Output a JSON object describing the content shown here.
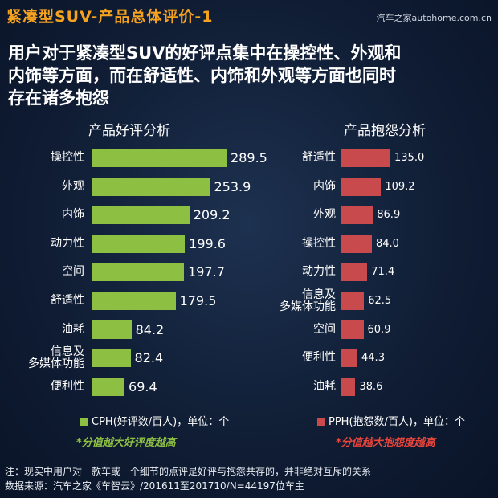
{
  "page": {
    "title": "紧凑型SUV-产品总体评价-1",
    "watermark": "汽车之家autohome.com.cn",
    "headline": "用户对于紧凑型SUV的好评点集中在操控性、外观和\n内饰等方面，而在舒适性、内饰和外观等方面也同时\n存在诸多抱怨",
    "notes": [
      "注：现实中用户对一款车或一个细节的点评是好评与抱怨共存的，并非绝对互斥的关系",
      "数据来源：汽车之家《车智云》/201611至201710/N=44197位车主"
    ]
  },
  "chart_data": [
    {
      "type": "bar",
      "orientation": "horizontal",
      "title": "产品好评分析",
      "categories": [
        "操控性",
        "外观",
        "内饰",
        "动力性",
        "空间",
        "舒适性",
        "油耗",
        "信息及\n多媒体功能",
        "便利性"
      ],
      "series": [
        {
          "name": "CPH(好评数/百人)，单位：个",
          "color": "#8dc042",
          "values": [
            289.5,
            253.9,
            209.2,
            199.6,
            197.7,
            179.5,
            84.2,
            82.4,
            69.4
          ]
        }
      ],
      "annotation": "*分值越大好评度越高",
      "annotation_color": "#8dc042"
    },
    {
      "type": "bar",
      "orientation": "horizontal",
      "title": "产品抱怨分析",
      "categories": [
        "舒适性",
        "内饰",
        "外观",
        "操控性",
        "动力性",
        "信息及\n多媒体功能",
        "空间",
        "便利性",
        "油耗"
      ],
      "series": [
        {
          "name": "PPH(抱怨数/百人)，单位：个",
          "color": "#c94a4c",
          "values": [
            135.0,
            109.2,
            86.9,
            84.0,
            71.4,
            62.5,
            60.9,
            44.3,
            38.6
          ],
          "value_labels": [
            "135.0",
            "109.2",
            "86.9",
            "84.0",
            "71.4",
            "62.5",
            "60.9",
            "44.3",
            "38.6"
          ]
        }
      ],
      "annotation": "*分值越大抱怨度越高",
      "annotation_color": "#e8453c"
    }
  ]
}
